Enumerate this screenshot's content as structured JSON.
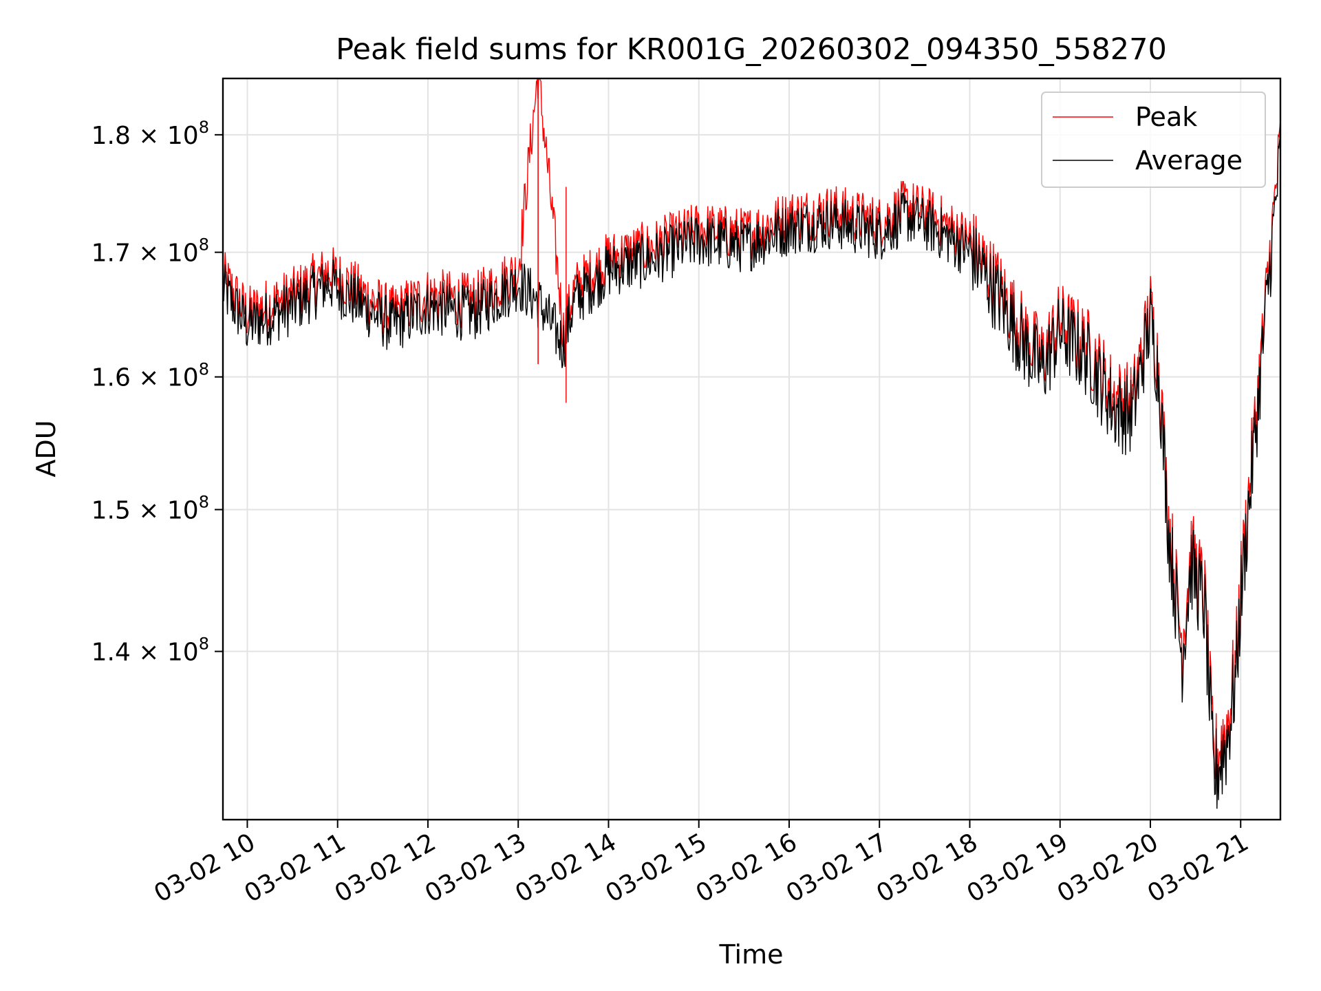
{
  "colors": {
    "peak": "#ff0000",
    "average": "#000000",
    "grid": "#e3e3e3"
  },
  "chart_data": {
    "type": "line",
    "title": "Peak field sums for KR001G_20260302_094350_558270",
    "xlabel": "Time",
    "ylabel": "ADU",
    "yscale": "log",
    "grid": true,
    "legend_position": "top-right",
    "xlim_hours": [
      9.73,
      21.44
    ],
    "ylim": [
      129000000,
      185000000
    ],
    "x_ticks": [
      {
        "value": 10,
        "label": "03-02 10"
      },
      {
        "value": 11,
        "label": "03-02 11"
      },
      {
        "value": 12,
        "label": "03-02 12"
      },
      {
        "value": 13,
        "label": "03-02 13"
      },
      {
        "value": 14,
        "label": "03-02 14"
      },
      {
        "value": 15,
        "label": "03-02 15"
      },
      {
        "value": 16,
        "label": "03-02 16"
      },
      {
        "value": 17,
        "label": "03-02 17"
      },
      {
        "value": 18,
        "label": "03-02 18"
      },
      {
        "value": 19,
        "label": "03-02 19"
      },
      {
        "value": 20,
        "label": "03-02 20"
      },
      {
        "value": 21,
        "label": "03-02 21"
      }
    ],
    "y_ticks": [
      {
        "value": 140000000,
        "mantissa": "1.4",
        "exponent": "8"
      },
      {
        "value": 150000000,
        "mantissa": "1.5",
        "exponent": "8"
      },
      {
        "value": 160000000,
        "mantissa": "1.6",
        "exponent": "8"
      },
      {
        "value": 170000000,
        "mantissa": "1.7",
        "exponent": "8"
      },
      {
        "value": 180000000,
        "mantissa": "1.8",
        "exponent": "8"
      }
    ],
    "series": [
      {
        "name": "Peak",
        "x": [
          9.73,
          10.0,
          10.5,
          10.9,
          11.2,
          11.6,
          12.0,
          12.5,
          13.0,
          13.22,
          13.5,
          13.62,
          14.0,
          14.5,
          15.0,
          15.5,
          16.0,
          16.5,
          17.0,
          17.3,
          17.6,
          18.0,
          18.3,
          18.6,
          18.8,
          19.0,
          19.3,
          19.6,
          19.8,
          20.0,
          20.1,
          20.2,
          20.35,
          20.45,
          20.6,
          20.7,
          20.85,
          20.95,
          21.0,
          21.2,
          21.44
        ],
        "y": [
          167500000,
          164500000,
          166000000,
          168000000,
          166500000,
          164500000,
          166000000,
          165500000,
          168000000,
          185000000,
          163000000,
          166500000,
          169000000,
          170000000,
          171500000,
          171000000,
          172500000,
          173000000,
          172000000,
          173500000,
          172500000,
          170500000,
          167000000,
          163000000,
          161000000,
          164000000,
          162000000,
          158000000,
          157500000,
          165000000,
          160000000,
          149000000,
          140000000,
          146500000,
          143500000,
          132000000,
          134500000,
          139000000,
          144000000,
          159000000,
          179000000
        ]
      },
      {
        "name": "Average",
        "x": [
          9.73,
          10.0,
          10.5,
          10.9,
          11.2,
          11.6,
          12.0,
          12.5,
          13.0,
          13.22,
          13.5,
          13.62,
          14.0,
          14.5,
          15.0,
          15.5,
          16.0,
          16.5,
          17.0,
          17.3,
          17.6,
          18.0,
          18.3,
          18.6,
          18.8,
          19.0,
          19.3,
          19.6,
          19.8,
          20.0,
          20.1,
          20.2,
          20.35,
          20.45,
          20.6,
          20.7,
          20.85,
          20.95,
          21.0,
          21.2,
          21.44
        ],
        "y": [
          167000000,
          164000000,
          165500000,
          167500000,
          166000000,
          164000000,
          165500000,
          165000000,
          167500000,
          166000000,
          162500000,
          166000000,
          168500000,
          169500000,
          171000000,
          170500000,
          172000000,
          172500000,
          171500000,
          173000000,
          172000000,
          170000000,
          166500000,
          162500000,
          160500000,
          163500000,
          161500000,
          157500000,
          157000000,
          164500000,
          159500000,
          148500000,
          139500000,
          146000000,
          143000000,
          131500000,
          134000000,
          138500000,
          143500000,
          158500000,
          178500000
        ]
      }
    ]
  }
}
